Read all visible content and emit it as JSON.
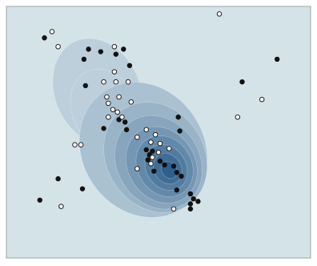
{
  "chart_data": {
    "type": "scatter",
    "title": "",
    "xlabel": "",
    "ylabel": "",
    "grid": false,
    "legend": "none",
    "xlim": [
      0,
      100
    ],
    "ylim": [
      0,
      100
    ],
    "colors": {
      "background": "#d4e3e8",
      "frame": "#9aa7ad",
      "density_low": "#bccfdb",
      "density_high": "#2e5f8c",
      "filled_marker": "#111111",
      "hollow_marker_fill": "#ffffff",
      "hollow_marker_stroke": "#222222"
    },
    "density_levels": 9,
    "density_contours": [
      {
        "cx": 30,
        "cy": 66,
        "rx": 14,
        "ry": 22,
        "rot": -24
      },
      {
        "cx": 33,
        "cy": 58,
        "rx": 11,
        "ry": 18,
        "rot": -28
      },
      {
        "cx": 45,
        "cy": 43,
        "rx": 20,
        "ry": 28,
        "rot": -34
      },
      {
        "cx": 49,
        "cy": 40,
        "rx": 16,
        "ry": 23,
        "rot": -34
      },
      {
        "cx": 50,
        "cy": 38,
        "rx": 13.5,
        "ry": 19.5,
        "rot": -34
      },
      {
        "cx": 51,
        "cy": 37,
        "rx": 11,
        "ry": 16,
        "rot": -34
      },
      {
        "cx": 52,
        "cy": 36.5,
        "rx": 8.8,
        "ry": 12.8,
        "rot": -34
      },
      {
        "cx": 52.5,
        "cy": 36,
        "rx": 6.5,
        "ry": 9.6,
        "rot": -34
      },
      {
        "cx": 53,
        "cy": 35.5,
        "rx": 4.4,
        "ry": 6.4,
        "rot": -34
      },
      {
        "cx": 53.5,
        "cy": 35,
        "rx": 2.4,
        "ry": 3.6,
        "rot": -34
      }
    ],
    "series": [
      {
        "marker": "filled",
        "points": [
          {
            "x": 12.5,
            "y": 87.5
          },
          {
            "x": 27,
            "y": 83
          },
          {
            "x": 25.5,
            "y": 79
          },
          {
            "x": 31,
            "y": 82
          },
          {
            "x": 36,
            "y": 81
          },
          {
            "x": 38.5,
            "y": 83
          },
          {
            "x": 40.5,
            "y": 76.5
          },
          {
            "x": 26,
            "y": 68.5
          },
          {
            "x": 89,
            "y": 79
          },
          {
            "x": 77.5,
            "y": 70
          },
          {
            "x": 56.5,
            "y": 56
          },
          {
            "x": 32,
            "y": 51.5
          },
          {
            "x": 37,
            "y": 55
          },
          {
            "x": 39,
            "y": 54
          },
          {
            "x": 39.5,
            "y": 51
          },
          {
            "x": 57,
            "y": 50.5
          },
          {
            "x": 46,
            "y": 43
          },
          {
            "x": 47,
            "y": 41
          },
          {
            "x": 48,
            "y": 42.5
          },
          {
            "x": 46.5,
            "y": 39
          },
          {
            "x": 50.5,
            "y": 38.5
          },
          {
            "x": 52,
            "y": 37
          },
          {
            "x": 48.5,
            "y": 34.5
          },
          {
            "x": 55,
            "y": 36.5
          },
          {
            "x": 56,
            "y": 34
          },
          {
            "x": 57.5,
            "y": 32.5
          },
          {
            "x": 17,
            "y": 31.5
          },
          {
            "x": 25,
            "y": 27.5
          },
          {
            "x": 56,
            "y": 27
          },
          {
            "x": 60.5,
            "y": 25.5
          },
          {
            "x": 61.5,
            "y": 23.5
          },
          {
            "x": 63,
            "y": 22.5
          },
          {
            "x": 60.5,
            "y": 21.5
          },
          {
            "x": 60.5,
            "y": 19.5
          },
          {
            "x": 11,
            "y": 23
          }
        ]
      },
      {
        "marker": "hollow",
        "points": [
          {
            "x": 70,
            "y": 97
          },
          {
            "x": 15,
            "y": 90
          },
          {
            "x": 17,
            "y": 84
          },
          {
            "x": 35.5,
            "y": 84
          },
          {
            "x": 35.5,
            "y": 74
          },
          {
            "x": 32,
            "y": 70
          },
          {
            "x": 36,
            "y": 70
          },
          {
            "x": 40,
            "y": 70
          },
          {
            "x": 33,
            "y": 64
          },
          {
            "x": 37,
            "y": 64
          },
          {
            "x": 41,
            "y": 62
          },
          {
            "x": 33.5,
            "y": 61.5
          },
          {
            "x": 35,
            "y": 59
          },
          {
            "x": 36.5,
            "y": 58
          },
          {
            "x": 33.5,
            "y": 56
          },
          {
            "x": 38,
            "y": 56
          },
          {
            "x": 84,
            "y": 63
          },
          {
            "x": 76,
            "y": 56
          },
          {
            "x": 46,
            "y": 51
          },
          {
            "x": 49,
            "y": 49
          },
          {
            "x": 43,
            "y": 48
          },
          {
            "x": 22.5,
            "y": 45
          },
          {
            "x": 24.5,
            "y": 45
          },
          {
            "x": 47.5,
            "y": 46
          },
          {
            "x": 50.5,
            "y": 45.5
          },
          {
            "x": 53.5,
            "y": 43.5
          },
          {
            "x": 48,
            "y": 40
          },
          {
            "x": 50,
            "y": 42
          },
          {
            "x": 47.5,
            "y": 37.5
          },
          {
            "x": 43,
            "y": 35.5
          },
          {
            "x": 18,
            "y": 20.5
          },
          {
            "x": 55,
            "y": 19.5
          }
        ]
      }
    ]
  }
}
